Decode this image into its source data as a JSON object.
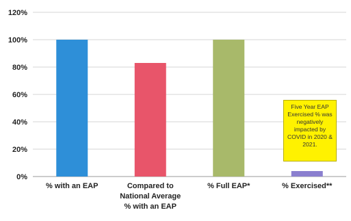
{
  "chart_data": {
    "type": "bar",
    "categories": [
      [
        "% with an EAP"
      ],
      [
        "Compared to",
        "National Average",
        "% with an EAP"
      ],
      [
        "% Full EAP*"
      ],
      [
        "% Exercised**"
      ]
    ],
    "values": [
      100,
      83,
      100,
      4
    ],
    "unit": "%",
    "ylim": [
      0,
      120
    ],
    "yticks": [
      "0%",
      "20%",
      "40%",
      "60%",
      "80%",
      "100%",
      "120%"
    ],
    "grid": true,
    "colors": [
      "#2e8fd8",
      "#e8556a",
      "#a8b96a",
      "#8a7fcf"
    ],
    "annotation": "Five Year EAP Exercised % was negatively impacted by COVID in 2020 & 2021."
  }
}
